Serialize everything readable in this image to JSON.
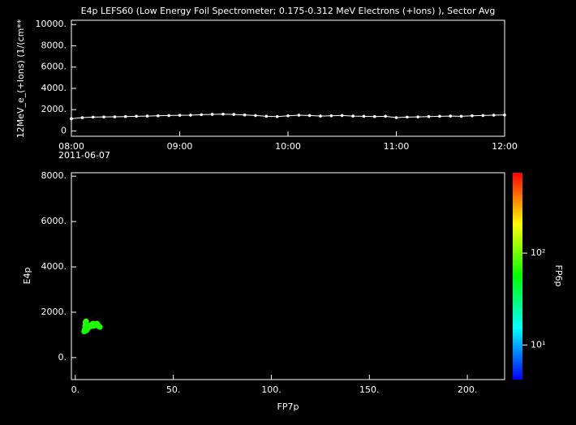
{
  "chart_data": [
    {
      "type": "line",
      "title": "E4p LEFS60 (Low Energy Foil Spectrometer; 0.175-0.312 MeV Electrons (+Ions) ), Sector Avg",
      "ylabel": "12MeV_e_(+Ions) (1/(cm**",
      "date_label": "2011-06-07",
      "x": [
        "08:00",
        "08:06",
        "08:12",
        "08:18",
        "08:24",
        "08:30",
        "08:36",
        "08:42",
        "08:48",
        "08:54",
        "09:00",
        "09:06",
        "09:12",
        "09:18",
        "09:24",
        "09:30",
        "09:36",
        "09:42",
        "09:48",
        "09:54",
        "10:00",
        "10:06",
        "10:12",
        "10:18",
        "10:24",
        "10:30",
        "10:36",
        "10:42",
        "10:48",
        "10:54",
        "11:00",
        "11:06",
        "11:12",
        "11:18",
        "11:24",
        "11:30",
        "11:36",
        "11:42",
        "11:48",
        "11:54",
        "12:00"
      ],
      "series": [
        {
          "color": "#ffffff",
          "values": [
            1150,
            1250,
            1300,
            1320,
            1330,
            1350,
            1380,
            1400,
            1420,
            1450,
            1470,
            1480,
            1530,
            1560,
            1580,
            1550,
            1500,
            1450,
            1380,
            1350,
            1420,
            1480,
            1450,
            1400,
            1420,
            1450,
            1400,
            1380,
            1350,
            1380,
            1250,
            1300,
            1320,
            1350,
            1380,
            1400,
            1380,
            1420,
            1450,
            1480,
            1500
          ]
        }
      ],
      "xlim": [
        "08:00",
        "12:00"
      ],
      "xticks": [
        "08:00",
        "09:00",
        "10:00",
        "11:00",
        "12:00"
      ],
      "ylim": [
        -500,
        10400
      ],
      "yticks": [
        0,
        {
          "value": 2000,
          "label": "2000."
        },
        {
          "value": 4000,
          "label": "4000."
        },
        {
          "value": 6000,
          "label": "6000."
        },
        {
          "value": 8000,
          "label": "8000."
        },
        {
          "value": 10000,
          "label": "10000."
        }
      ]
    },
    {
      "type": "scatter",
      "xlabel": "FP7p",
      "ylabel": "E4p",
      "x": [
        4.5,
        4.8,
        5,
        5.2,
        5.5,
        5.8,
        6,
        6.2,
        6.5,
        7,
        7.5,
        8,
        8.5,
        9,
        9.5,
        10,
        10.5,
        11,
        11.5,
        12,
        12.5
      ],
      "values": [
        1150,
        1250,
        1400,
        1550,
        1600,
        1200,
        1450,
        1280,
        1300,
        1350,
        1420,
        1380,
        1450,
        1500,
        1400,
        1480,
        1420,
        1500,
        1450,
        1380,
        1350
      ],
      "z": [
        60,
        62,
        65,
        68,
        70,
        61,
        66,
        62,
        64,
        63,
        65,
        64,
        66,
        67,
        65,
        66,
        65,
        67,
        66,
        64,
        63
      ],
      "xlim": [
        -2,
        219
      ],
      "xticks": [
        {
          "value": 0,
          "label": "0."
        },
        {
          "value": 50,
          "label": "50."
        },
        {
          "value": 100,
          "label": "100."
        },
        {
          "value": 150,
          "label": "150."
        },
        {
          "value": 200,
          "label": "200."
        }
      ],
      "ylim": [
        -970,
        8150
      ],
      "yticks": [
        {
          "value": 0,
          "label": "0."
        },
        {
          "value": 2000,
          "label": "2000."
        },
        {
          "value": 4000,
          "label": "4000."
        },
        {
          "value": 6000,
          "label": "6000."
        },
        {
          "value": 8000,
          "label": "8000."
        }
      ],
      "zlabel": "FP6p",
      "zscale": "log",
      "zlim": [
        4.2,
        750
      ],
      "zticks": [
        {
          "value": 10,
          "label": "10¹"
        },
        {
          "value": 100,
          "label": "10²"
        }
      ]
    }
  ]
}
